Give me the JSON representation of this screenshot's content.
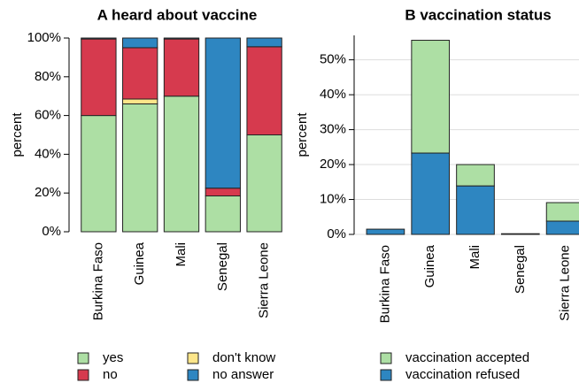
{
  "chart_data": [
    {
      "type": "stacked-bar",
      "title": "A  heard about vaccine",
      "ylabel": "percent",
      "categories": [
        "Burkina Faso",
        "Guinea",
        "Mali",
        "Senegal",
        "Sierra Leone"
      ],
      "series": [
        {
          "name": "yes",
          "color": "#addfa4",
          "values": [
            60,
            66,
            70,
            18.5,
            50
          ]
        },
        {
          "name": "don't know",
          "color": "#fde68a",
          "values": [
            0,
            2.5,
            0,
            0,
            0
          ]
        },
        {
          "name": "no",
          "color": "#d63a4e",
          "values": [
            39.5,
            26.5,
            29.5,
            4,
            45.5
          ]
        },
        {
          "name": "no answer",
          "color": "#2e86c1",
          "values": [
            0.5,
            5,
            0.5,
            77.5,
            4.5
          ]
        }
      ],
      "ylim": [
        0,
        100
      ],
      "yticks": [
        {
          "value": 0,
          "label": "0%"
        },
        {
          "value": 20,
          "label": "20%"
        },
        {
          "value": 40,
          "label": "40%"
        },
        {
          "value": 60,
          "label": "60%"
        },
        {
          "value": 80,
          "label": "80%"
        },
        {
          "value": 100,
          "label": "100%"
        }
      ],
      "grid": false,
      "stack_from": "first"
    },
    {
      "type": "stacked-bar",
      "title": "B  vaccination status",
      "ylabel": "percent",
      "categories": [
        "Burkina Faso",
        "Guinea",
        "Mali",
        "Senegal",
        "Sierra Leone"
      ],
      "series": [
        {
          "name": "vaccination accepted",
          "color": "#addfa4",
          "values": [
            0,
            32.3,
            6.1,
            0,
            5.3
          ]
        },
        {
          "name": "vaccination refused",
          "color": "#2e86c1",
          "values": [
            1.5,
            23.3,
            13.9,
            0.2,
            3.8
          ]
        }
      ],
      "ylim": [
        0,
        57
      ],
      "yticks": [
        {
          "value": 0,
          "label": "0%"
        },
        {
          "value": 10,
          "label": "10%"
        },
        {
          "value": 20,
          "label": "20%"
        },
        {
          "value": 30,
          "label": "30%"
        },
        {
          "value": 40,
          "label": "40%"
        },
        {
          "value": 50,
          "label": "50%"
        }
      ],
      "grid": true,
      "stack_from": "last"
    }
  ]
}
